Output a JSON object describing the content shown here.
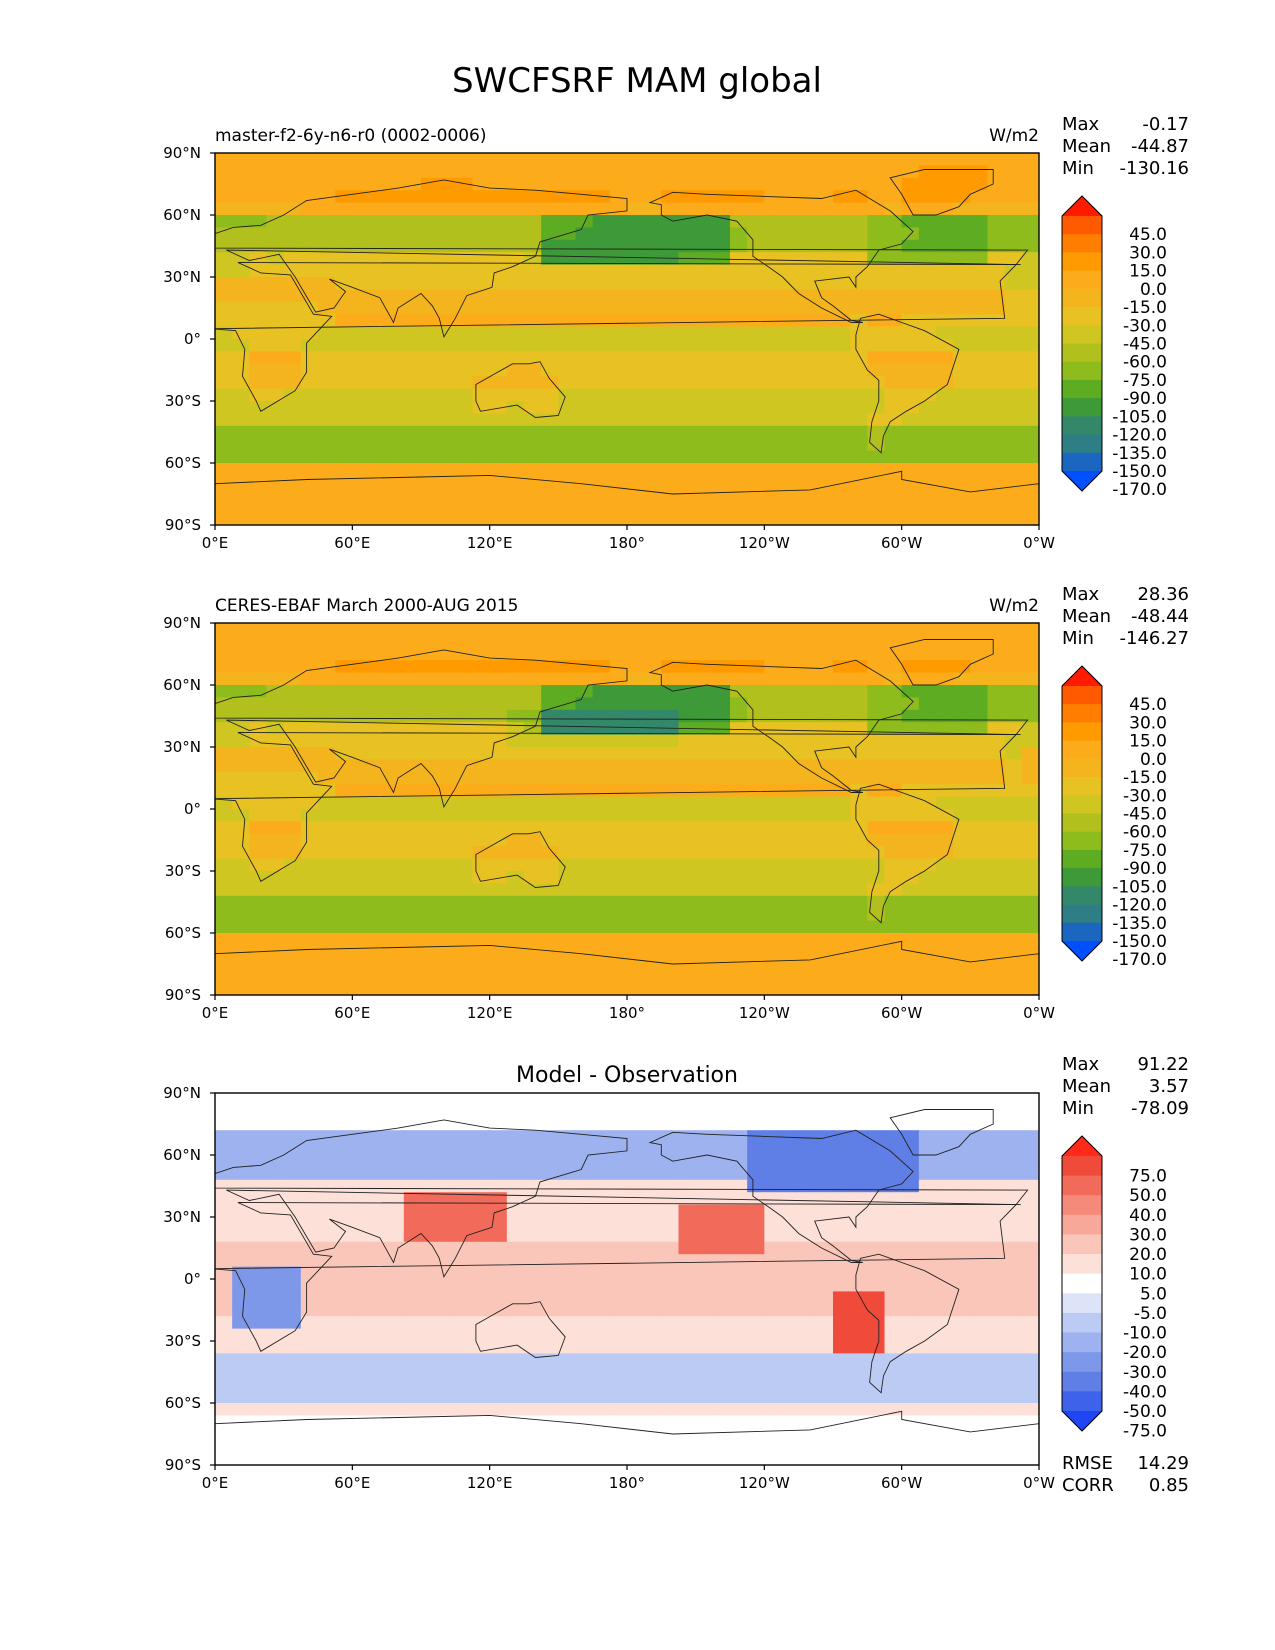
{
  "figure": {
    "title": "SWCFSRF MAM global"
  },
  "chart_data": [
    {
      "type": "heatmap",
      "title": "master-f2-6y-n6-r0 (0002-0006)",
      "units": "W/m2",
      "stats": [
        {
          "label": "Max",
          "value": "-0.17"
        },
        {
          "label": "Mean",
          "value": "-44.87"
        },
        {
          "label": "Min",
          "value": "-130.16"
        }
      ],
      "x_ticks": [
        "0°E",
        "60°E",
        "120°E",
        "180°",
        "120°W",
        "60°W",
        "0°W"
      ],
      "y_ticks": [
        "90°N",
        "60°N",
        "30°N",
        "0°",
        "30°S",
        "60°S",
        "90°S"
      ],
      "xlim": [
        0,
        360
      ],
      "ylim": [
        -90,
        90
      ],
      "colorbar": {
        "extend": "both",
        "labels": [
          "45.0",
          "30.0",
          "15.0",
          "0.0",
          "-15.0",
          "-30.0",
          "-45.0",
          "-60.0",
          "-75.0",
          "-90.0",
          "-105.0",
          "-120.0",
          "-135.0",
          "-150.0",
          "-170.0"
        ],
        "colors": [
          "#ff1a00",
          "#ff5a00",
          "#ff7e00",
          "#ff9a00",
          "#fcac1a",
          "#f4b41e",
          "#e8c222",
          "#cfc622",
          "#b2c01e",
          "#8ebc1c",
          "#5eac22",
          "#3e9a38",
          "#34886a",
          "#2e7e86",
          "#1a66c0",
          "#0050ff"
        ]
      },
      "field_kind": "model"
    },
    {
      "type": "heatmap",
      "title": "CERES-EBAF March 2000-AUG 2015",
      "units": "W/m2",
      "stats": [
        {
          "label": "Max",
          "value": "28.36"
        },
        {
          "label": "Mean",
          "value": "-48.44"
        },
        {
          "label": "Min",
          "value": "-146.27"
        }
      ],
      "x_ticks": [
        "0°E",
        "60°E",
        "120°E",
        "180°",
        "120°W",
        "60°W",
        "0°W"
      ],
      "y_ticks": [
        "90°N",
        "60°N",
        "30°N",
        "0°",
        "30°S",
        "60°S",
        "90°S"
      ],
      "xlim": [
        0,
        360
      ],
      "ylim": [
        -90,
        90
      ],
      "colorbar": {
        "extend": "both",
        "labels": [
          "45.0",
          "30.0",
          "15.0",
          "0.0",
          "-15.0",
          "-30.0",
          "-45.0",
          "-60.0",
          "-75.0",
          "-90.0",
          "-105.0",
          "-120.0",
          "-135.0",
          "-150.0",
          "-170.0"
        ],
        "colors": [
          "#ff1a00",
          "#ff5a00",
          "#ff7e00",
          "#ff9a00",
          "#fcac1a",
          "#f4b41e",
          "#e8c222",
          "#cfc622",
          "#b2c01e",
          "#8ebc1c",
          "#5eac22",
          "#3e9a38",
          "#34886a",
          "#2e7e86",
          "#1a66c0",
          "#0050ff"
        ]
      },
      "field_kind": "obs"
    },
    {
      "type": "heatmap",
      "title": "Model - Observation",
      "units": "",
      "stats": [
        {
          "label": "Max",
          "value": "91.22"
        },
        {
          "label": "Mean",
          "value": "3.57"
        },
        {
          "label": "Min",
          "value": "-78.09"
        }
      ],
      "extra_stats": [
        {
          "label": "RMSE",
          "value": "14.29"
        },
        {
          "label": "CORR",
          "value": "0.85"
        }
      ],
      "x_ticks": [
        "0°E",
        "60°E",
        "120°E",
        "180°",
        "120°W",
        "60°W",
        "0°W"
      ],
      "y_ticks": [
        "90°N",
        "60°N",
        "30°N",
        "0°",
        "30°S",
        "60°S",
        "90°S"
      ],
      "xlim": [
        0,
        360
      ],
      "ylim": [
        -90,
        90
      ],
      "colorbar": {
        "extend": "both",
        "labels": [
          "75.0",
          "50.0",
          "40.0",
          "30.0",
          "20.0",
          "10.0",
          "5.0",
          "-5.0",
          "-10.0",
          "-20.0",
          "-30.0",
          "-40.0",
          "-50.0",
          "-75.0"
        ],
        "colors": [
          "#ff2a1a",
          "#ef4a3a",
          "#f26a5a",
          "#f58a7a",
          "#f8a898",
          "#fbc6ba",
          "#fde0d8",
          "#ffffff",
          "#dde4f8",
          "#bccbf3",
          "#9db2ee",
          "#7e98e9",
          "#5f7ee6",
          "#3f62ea",
          "#1f46f4"
        ]
      },
      "field_kind": "diff"
    }
  ]
}
